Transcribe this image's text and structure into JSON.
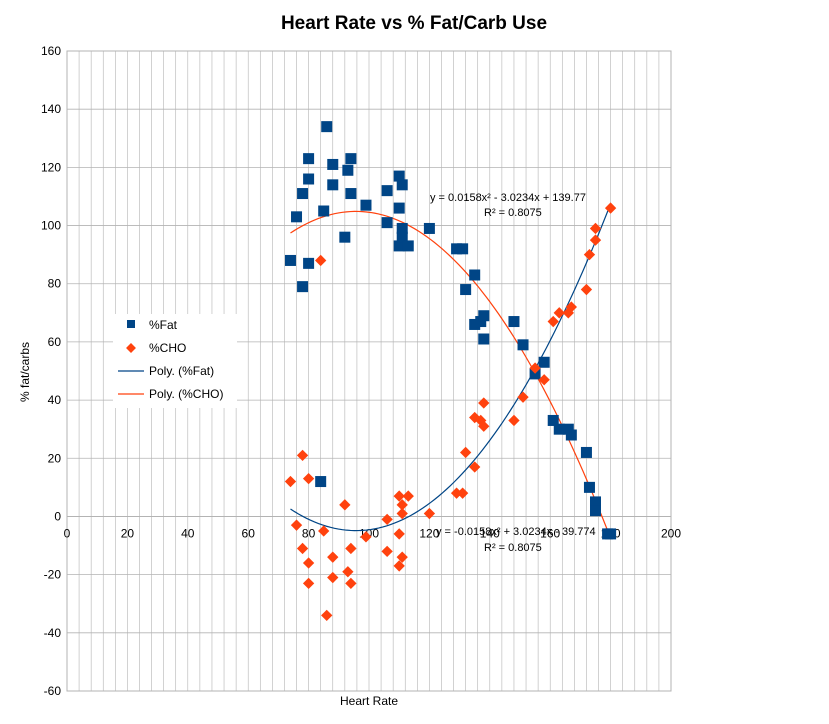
{
  "chart_data": {
    "type": "scatter",
    "title": "Heart Rate vs % Fat/Carb Use",
    "xlabel": "Heart Rate",
    "ylabel": "% fat/carbs",
    "xlim": [
      0,
      200
    ],
    "ylim": [
      -60,
      160
    ],
    "xticks": [
      "0",
      "20",
      "40",
      "60",
      "80",
      "100",
      "120",
      "140",
      "160",
      "180",
      "200"
    ],
    "yticks": [
      "-60",
      "-40",
      "-20",
      "0",
      "20",
      "40",
      "60",
      "80",
      "100",
      "120",
      "140",
      "160"
    ],
    "grid": true,
    "legend_position": "left",
    "series": [
      {
        "name": "%Fat",
        "marker": "square",
        "color": "#004586",
        "points": [
          [
            74,
            88
          ],
          [
            76,
            103
          ],
          [
            78,
            111
          ],
          [
            78,
            79
          ],
          [
            80,
            123
          ],
          [
            80,
            116
          ],
          [
            80,
            87
          ],
          [
            84,
            12
          ],
          [
            85,
            105
          ],
          [
            86,
            134
          ],
          [
            88,
            121
          ],
          [
            88,
            114
          ],
          [
            92,
            96
          ],
          [
            93,
            119
          ],
          [
            94,
            123
          ],
          [
            94,
            111
          ],
          [
            99,
            107
          ],
          [
            106,
            112
          ],
          [
            106,
            101
          ],
          [
            110,
            117
          ],
          [
            110,
            106
          ],
          [
            110,
            93
          ],
          [
            111,
            114
          ],
          [
            111,
            99
          ],
          [
            111,
            96
          ],
          [
            113,
            93
          ],
          [
            120,
            99
          ],
          [
            129,
            92
          ],
          [
            131,
            92
          ],
          [
            132,
            78
          ],
          [
            135,
            83
          ],
          [
            135,
            66
          ],
          [
            137,
            67
          ],
          [
            138,
            69
          ],
          [
            138,
            61
          ],
          [
            148,
            67
          ],
          [
            151,
            59
          ],
          [
            155,
            49
          ],
          [
            158,
            53
          ],
          [
            161,
            33
          ],
          [
            163,
            30
          ],
          [
            166,
            30
          ],
          [
            167,
            28
          ],
          [
            172,
            22
          ],
          [
            173,
            10
          ],
          [
            175,
            5
          ],
          [
            175,
            2
          ],
          [
            179,
            -6
          ],
          [
            180,
            -6
          ]
        ]
      },
      {
        "name": "%CHO",
        "marker": "diamond",
        "color": "#ff420e",
        "points": [
          [
            74,
            12
          ],
          [
            76,
            -3
          ],
          [
            78,
            21
          ],
          [
            78,
            -11
          ],
          [
            80,
            13
          ],
          [
            80,
            -16
          ],
          [
            80,
            -23
          ],
          [
            84,
            88
          ],
          [
            85,
            -5
          ],
          [
            86,
            -34
          ],
          [
            88,
            -21
          ],
          [
            88,
            -14
          ],
          [
            92,
            4
          ],
          [
            93,
            -19
          ],
          [
            94,
            -23
          ],
          [
            94,
            -11
          ],
          [
            99,
            -7
          ],
          [
            106,
            -12
          ],
          [
            106,
            -1
          ],
          [
            110,
            7
          ],
          [
            110,
            -6
          ],
          [
            110,
            -17
          ],
          [
            111,
            -14
          ],
          [
            111,
            1
          ],
          [
            111,
            4
          ],
          [
            113,
            7
          ],
          [
            120,
            1
          ],
          [
            129,
            8
          ],
          [
            131,
            8
          ],
          [
            132,
            22
          ],
          [
            135,
            17
          ],
          [
            135,
            34
          ],
          [
            137,
            33
          ],
          [
            138,
            39
          ],
          [
            138,
            31
          ],
          [
            148,
            33
          ],
          [
            151,
            41
          ],
          [
            155,
            51
          ],
          [
            158,
            47
          ],
          [
            161,
            67
          ],
          [
            163,
            70
          ],
          [
            166,
            70
          ],
          [
            167,
            72
          ],
          [
            172,
            78
          ],
          [
            173,
            90
          ],
          [
            175,
            95
          ],
          [
            175,
            99
          ],
          [
            180,
            106
          ]
        ]
      }
    ],
    "trendlines": [
      {
        "name": "Poly. (%Fat)",
        "color": "#004586",
        "coeffs": [
          0.0158,
          -3.0234,
          139.77
        ],
        "x_range": [
          74,
          180
        ],
        "equation": "y = 0.0158x² - 3.0234x + 139.77",
        "r2": "R² = 0.8075"
      },
      {
        "name": "Poly. (%CHO)",
        "color": "#ff420e",
        "coeffs": [
          -0.0158,
          3.0234,
          -39.774
        ],
        "x_range": [
          74,
          180
        ],
        "equation": "y = -0.0158x² + 3.0234x - 39.774",
        "r2": "R² = 0.8075"
      }
    ]
  }
}
